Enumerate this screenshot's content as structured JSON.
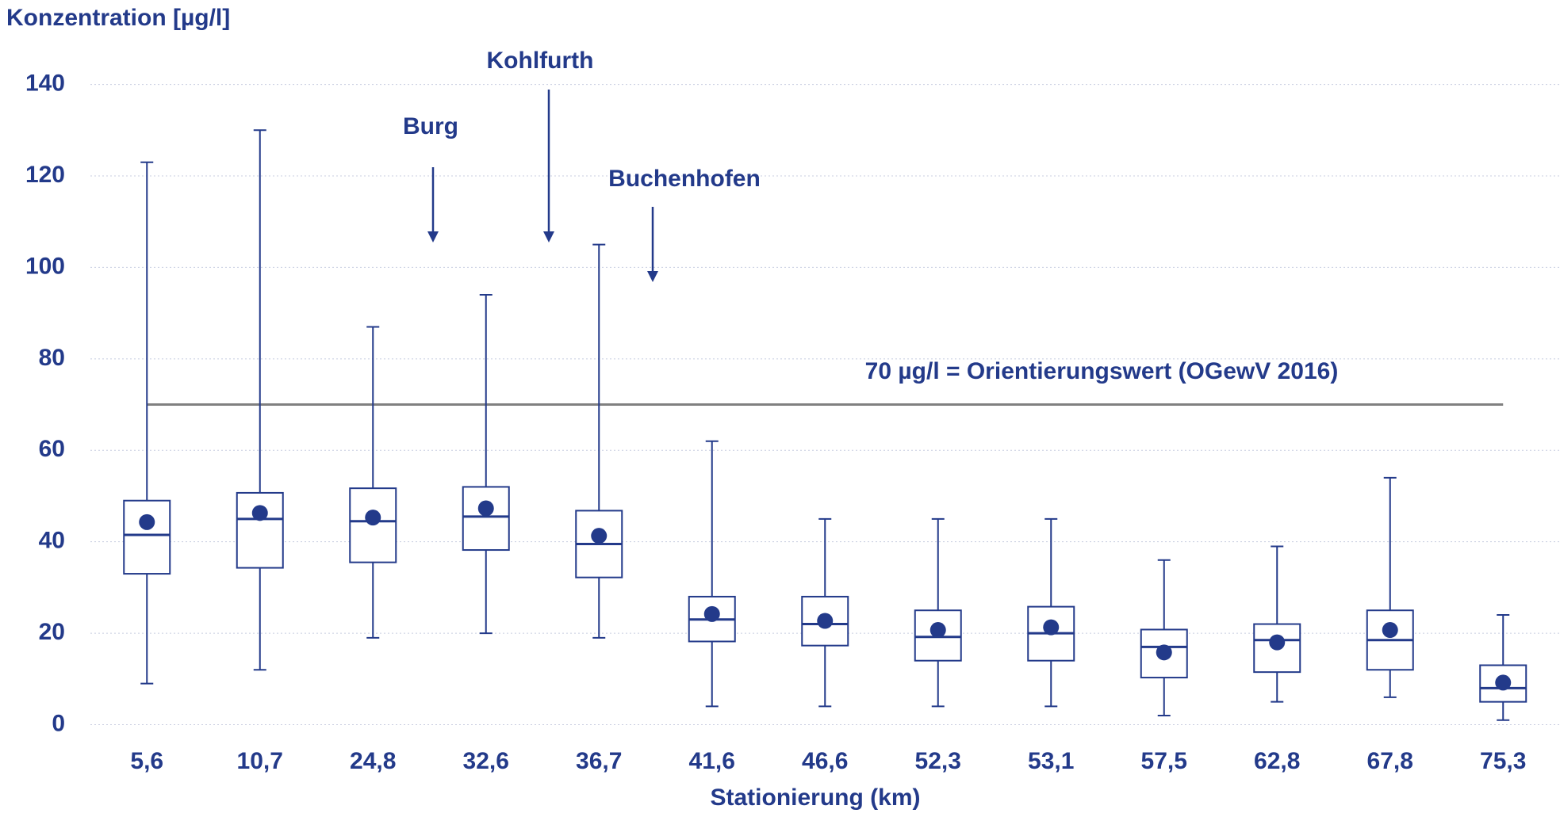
{
  "chart_data": {
    "type": "boxplot",
    "title": "Konzentration [µg/l]",
    "x_label": "Stationierung (km)",
    "categories": [
      "5,6",
      "10,7",
      "24,8",
      "32,6",
      "36,7",
      "41,6",
      "46,6",
      "52,3",
      "53,1",
      "57,5",
      "62,8",
      "67,8",
      "75,3"
    ],
    "min": [
      9,
      12,
      19,
      20,
      19,
      4,
      4,
      4,
      4,
      2,
      5,
      6,
      1
    ],
    "q1": [
      33,
      34.3,
      35.5,
      38.2,
      32.2,
      18.2,
      17.3,
      14,
      14,
      10.3,
      11.5,
      12,
      5
    ],
    "median": [
      41.5,
      45,
      44.5,
      45.5,
      39.5,
      23,
      22,
      19.2,
      20,
      17,
      18.5,
      18.5,
      8
    ],
    "q3": [
      49,
      50.7,
      51.7,
      52,
      46.8,
      28,
      28,
      25,
      25.8,
      20.8,
      22,
      25,
      13
    ],
    "max": [
      123,
      130,
      87,
      94,
      105,
      62,
      45,
      45,
      45,
      36,
      39,
      54,
      24
    ],
    "mean": [
      44.3,
      46.3,
      45.3,
      47.3,
      41.3,
      24.2,
      22.7,
      20.7,
      21.3,
      15.8,
      18,
      20.7,
      9.2
    ],
    "color": "#233a8a",
    "ylim": [
      0,
      140
    ],
    "yticks": [
      0,
      20,
      40,
      60,
      80,
      100,
      120,
      140
    ],
    "grid": true,
    "reference_line": {
      "value": 70,
      "label": "70 µg/l = Orientierungswert (OGewV 2016)",
      "color": "#808080"
    },
    "annotations": [
      "Burg",
      "Kohlfurth",
      "Buchenhofen"
    ]
  }
}
